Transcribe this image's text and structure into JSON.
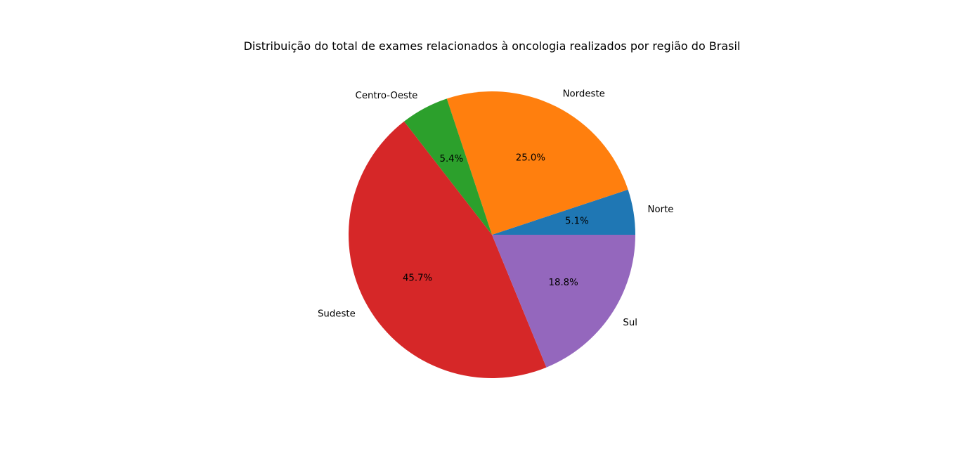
{
  "chart_data": {
    "type": "pie",
    "title": "Distribuição do total de exames relacionados à oncologia realizados por região do Brasil",
    "categories": [
      "Norte",
      "Nordeste",
      "Centro-Oeste",
      "Sudeste",
      "Sul"
    ],
    "values": [
      5.1,
      25.0,
      5.4,
      45.7,
      18.8
    ],
    "value_labels": [
      "5.1%",
      "25.0%",
      "5.4%",
      "45.7%",
      "18.8%"
    ],
    "colors": [
      "#1f77b4",
      "#ff7f0e",
      "#2ca02c",
      "#d62728",
      "#9467bd"
    ],
    "start_angle_deg": 0,
    "direction": "counterclockwise",
    "legend": "none"
  }
}
